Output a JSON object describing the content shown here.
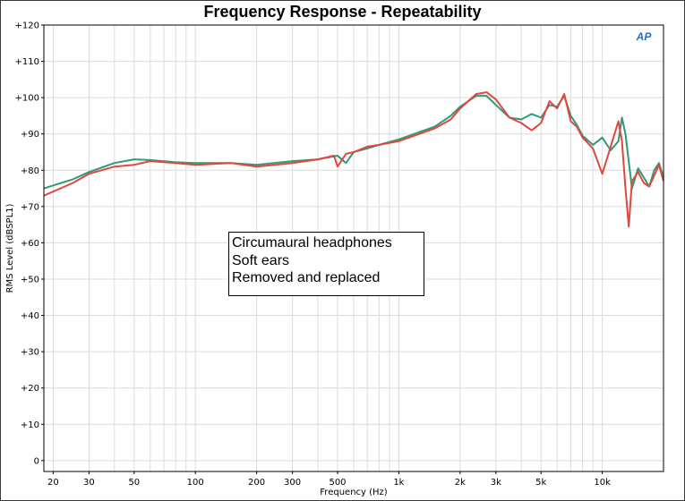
{
  "chart_data": {
    "type": "line",
    "title": "Frequency Response - Repeatability",
    "xlabel": "Frequency (Hz)",
    "ylabel": "RMS Level (dBSPL1)",
    "x_scale": "log",
    "xlim": [
      18,
      20000
    ],
    "ylim": [
      -3,
      120
    ],
    "grid": true,
    "x_tick_labels": [
      {
        "value": 20,
        "label": "20"
      },
      {
        "value": 30,
        "label": "30"
      },
      {
        "value": 50,
        "label": "50"
      },
      {
        "value": 100,
        "label": "100"
      },
      {
        "value": 200,
        "label": "200"
      },
      {
        "value": 300,
        "label": "300"
      },
      {
        "value": 500,
        "label": "500"
      },
      {
        "value": 1000,
        "label": "1k"
      },
      {
        "value": 2000,
        "label": "2k"
      },
      {
        "value": 3000,
        "label": "3k"
      },
      {
        "value": 5000,
        "label": "5k"
      },
      {
        "value": 10000,
        "label": "10k"
      }
    ],
    "y_tick_labels": [
      {
        "value": 120,
        "label": "+120"
      },
      {
        "value": 110,
        "label": "+110"
      },
      {
        "value": 100,
        "label": "+100"
      },
      {
        "value": 90,
        "label": "+90"
      },
      {
        "value": 80,
        "label": "+80"
      },
      {
        "value": 70,
        "label": "+70"
      },
      {
        "value": 60,
        "label": "+60"
      },
      {
        "value": 50,
        "label": "+50"
      },
      {
        "value": 40,
        "label": "+40"
      },
      {
        "value": 30,
        "label": "+30"
      },
      {
        "value": 20,
        "label": "+20"
      },
      {
        "value": 10,
        "label": "+10"
      },
      {
        "value": 0,
        "label": "0"
      }
    ],
    "annotation": [
      "Circumaural headphones",
      "Soft ears",
      "Removed and replaced"
    ],
    "logo_text": "AP",
    "series": [
      {
        "color": "#2e9a78",
        "x": [
          18,
          25,
          30,
          40,
          50,
          60,
          80,
          100,
          150,
          200,
          300,
          400,
          500,
          550,
          600,
          700,
          800,
          1000,
          1500,
          1800,
          2000,
          2400,
          2700,
          3000,
          3500,
          4000,
          4500,
          5000,
          5500,
          6000,
          6500,
          7000,
          7500,
          8000,
          9000,
          10000,
          11000,
          12000,
          12500,
          13000,
          14000,
          15000,
          16000,
          17000,
          18000,
          19000,
          20000
        ],
        "y": [
          75,
          77.5,
          79.5,
          82,
          83,
          82.8,
          82.2,
          82,
          82,
          81.5,
          82.5,
          83,
          84,
          82,
          85,
          86,
          87,
          88.5,
          92,
          95,
          97.5,
          100.5,
          100.5,
          98,
          94.5,
          94,
          95.5,
          94.5,
          98,
          97.5,
          100.5,
          95,
          92.5,
          89.5,
          87,
          89,
          85.5,
          88,
          94.5,
          90,
          75,
          80.5,
          78,
          75.5,
          80,
          82,
          78
        ]
      },
      {
        "color": "#e2473f",
        "x": [
          18,
          25,
          30,
          40,
          50,
          60,
          80,
          100,
          150,
          200,
          300,
          400,
          480,
          500,
          550,
          600,
          700,
          800,
          1000,
          1500,
          1800,
          2000,
          2400,
          2700,
          3000,
          3500,
          4000,
          4500,
          5000,
          5500,
          6000,
          6500,
          7000,
          7500,
          8000,
          9000,
          10000,
          11000,
          12000,
          12500,
          13000,
          13500,
          14000,
          15000,
          16000,
          17000,
          18000,
          19000,
          20000
        ],
        "y": [
          73,
          76.5,
          79,
          81,
          81.5,
          82.5,
          82,
          81.5,
          82,
          81,
          82,
          83,
          84,
          81,
          84.5,
          85,
          86.5,
          87,
          88,
          91.5,
          94,
          97,
          101,
          101.5,
          99.5,
          94.5,
          93,
          91,
          93,
          99,
          97,
          101,
          93.5,
          92,
          89,
          86,
          79,
          86.5,
          93.5,
          88,
          75,
          64.5,
          77,
          79.5,
          76.5,
          75.5,
          78.5,
          81.5,
          77
        ]
      }
    ]
  }
}
